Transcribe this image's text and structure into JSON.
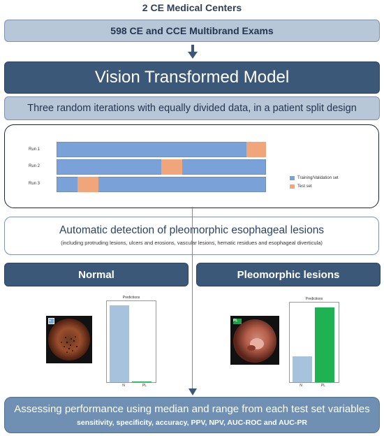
{
  "header": {
    "title": "2 CE Medical Centers"
  },
  "exams": {
    "label": "598 CE and CCE Multibrand Exams"
  },
  "model": {
    "label": "Vision Transformed Model"
  },
  "iterations": {
    "label": "Three random iterations with equally divided data, in a patient split design"
  },
  "runs": {
    "items": [
      {
        "label": "Run 1",
        "test_start": 0.905,
        "test_end": 1.0
      },
      {
        "label": "Run 2",
        "test_start": 0.5,
        "test_end": 0.6
      },
      {
        "label": "Run 3",
        "test_start": 0.1,
        "test_end": 0.2
      }
    ],
    "legend": [
      {
        "label": "Training/Validation set",
        "color": "#7ba2d8"
      },
      {
        "label": "Test set",
        "color": "#f0a57b"
      }
    ]
  },
  "detection": {
    "title": "Automatic detection of pleomorphic esophageal lesions",
    "subtitle": "(including protruding lesions, ulcers and erosions, vascular lesions, hematic residues and esophageal diverticula)"
  },
  "normal": {
    "title": "Normal",
    "image_badge": "N",
    "chart": {
      "title": "Predictions",
      "categories": [
        "N",
        "PL"
      ],
      "values": [
        0.98,
        0.01
      ],
      "colors": [
        "#a6c2dc",
        "#1fb253"
      ]
    }
  },
  "pleomorphic": {
    "title": "Pleomorphic lesions",
    "image_badge": "PL",
    "chart": {
      "title": "Predictions",
      "categories": [
        "N",
        "PL"
      ],
      "values": [
        0.34,
        0.97
      ],
      "colors": [
        "#a6c2dc",
        "#1fb253"
      ]
    }
  },
  "assessment": {
    "title": "Assessing performance using median and range from each test set variables",
    "subtitle": "sensitivity, specificity, accuracy, PPV, NPV, AUC-ROC and AUC-PR"
  },
  "colors": {
    "accent_dark": "#3c5878",
    "accent_light": "#b8c7d8",
    "train": "#7ba2d8",
    "test": "#f0a57b",
    "pl_bar": "#1fb253"
  },
  "chart_data": [
    {
      "type": "bar",
      "title": "Predictions",
      "categories": [
        "N",
        "PL"
      ],
      "values": [
        0.98,
        0.01
      ]
    },
    {
      "type": "bar",
      "title": "Predictions",
      "categories": [
        "N",
        "PL"
      ],
      "values": [
        0.34,
        0.97
      ]
    }
  ]
}
